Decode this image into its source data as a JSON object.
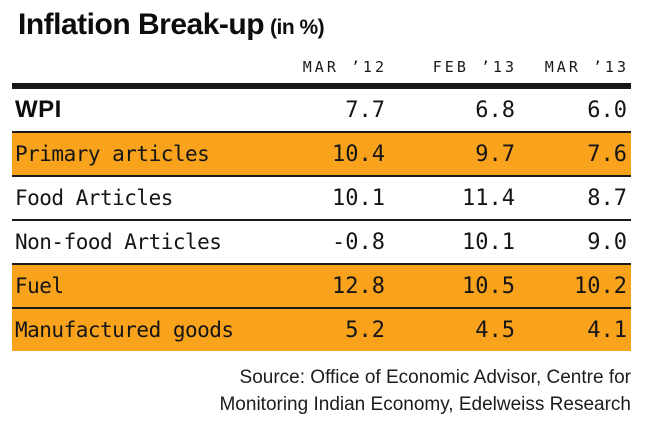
{
  "title": {
    "main": "Inflation Break-up",
    "suffix": "(in %)"
  },
  "table": {
    "columns": [
      "MAR ’12",
      "FEB ’13",
      "MAR ’13"
    ],
    "rows": [
      {
        "label": "WPI",
        "values": [
          "7.7",
          "6.8",
          "6.0"
        ],
        "highlight": false,
        "bold": true
      },
      {
        "label": "Primary articles",
        "values": [
          "10.4",
          "9.7",
          "7.6"
        ],
        "highlight": true,
        "bold": false
      },
      {
        "label": "Food Articles",
        "values": [
          "10.1",
          "11.4",
          "8.7"
        ],
        "highlight": false,
        "bold": false
      },
      {
        "label": "Non-food Articles",
        "values": [
          "-0.8",
          "10.1",
          "9.0"
        ],
        "highlight": false,
        "bold": false
      },
      {
        "label": "Fuel",
        "values": [
          "12.8",
          "10.5",
          "10.2"
        ],
        "highlight": true,
        "bold": false
      },
      {
        "label": "Manufactured goods",
        "values": [
          "5.2",
          "4.5",
          "4.1"
        ],
        "highlight": true,
        "bold": false
      }
    ]
  },
  "source": "Source: Office of Economic Advisor, Centre for Monitoring Indian Economy, Edelweiss Research",
  "colors": {
    "highlight": "#F9A21B",
    "rule": "#1c1c14",
    "text": "#111111",
    "background": "#ffffff"
  },
  "chart_data": {
    "type": "table",
    "title": "Inflation Break-up (in %)",
    "columns": [
      "MAR ’12",
      "FEB ’13",
      "MAR ’13"
    ],
    "rows": [
      {
        "label": "WPI",
        "values": [
          7.7,
          6.8,
          6.0
        ]
      },
      {
        "label": "Primary articles",
        "values": [
          10.4,
          9.7,
          7.6
        ]
      },
      {
        "label": "Food Articles",
        "values": [
          10.1,
          11.4,
          8.7
        ]
      },
      {
        "label": "Non-food Articles",
        "values": [
          -0.8,
          10.1,
          9.0
        ]
      },
      {
        "label": "Fuel",
        "values": [
          12.8,
          10.5,
          10.2
        ]
      },
      {
        "label": "Manufactured goods",
        "values": [
          5.2,
          4.5,
          4.1
        ]
      }
    ],
    "highlighted_rows": [
      "Primary articles",
      "Fuel",
      "Manufactured goods"
    ],
    "source": "Source: Office of Economic Advisor, Centre for Monitoring Indian Economy, Edelweiss Research"
  }
}
